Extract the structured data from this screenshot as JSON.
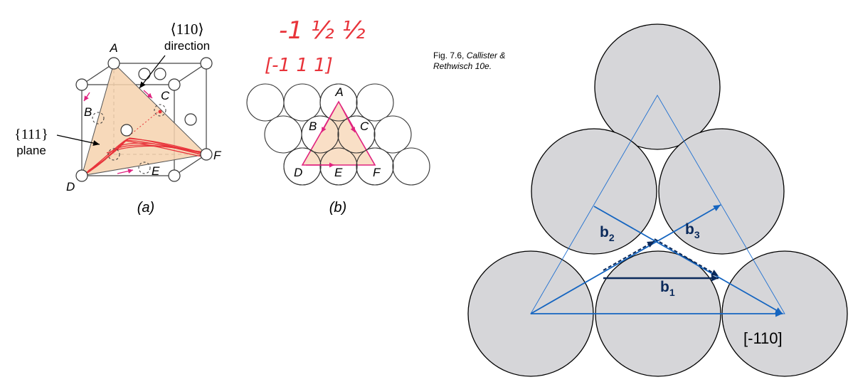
{
  "panel_a": {
    "direction_index": "⟨110⟩",
    "direction_word": "direction",
    "plane_index": "{111}",
    "plane_word": "plane",
    "points": {
      "A": "A",
      "B": "B",
      "C": "C",
      "D": "D",
      "E": "E",
      "F": "F"
    },
    "caption": "(a)"
  },
  "panel_b": {
    "handwriting_line1": "-1 ½ ½",
    "handwriting_line2": "[-1 1 1]",
    "points": {
      "A": "A",
      "B": "B",
      "C": "C",
      "D": "D",
      "E": "E",
      "F": "F"
    },
    "caption": "(b)"
  },
  "credit": {
    "line1_prefix": "Fig. 7.6, ",
    "line1_italic": "Callister &",
    "line2": "Rethwisch 10e."
  },
  "panel_c": {
    "b1_base": "b",
    "b1_sub": "1",
    "b2_base": "b",
    "b2_sub": "2",
    "b3_base": "b",
    "b3_sub": "3",
    "direction_label": "[-110]"
  },
  "colors": {
    "atom_fill": "#d6d6d9",
    "plane_fill": "#f6d2ae",
    "arrow_magenta": "#e0237f",
    "handwriting_red": "#e8333a",
    "vector_blue": "#1565c0",
    "vector_dark": "#0b2a5b"
  }
}
